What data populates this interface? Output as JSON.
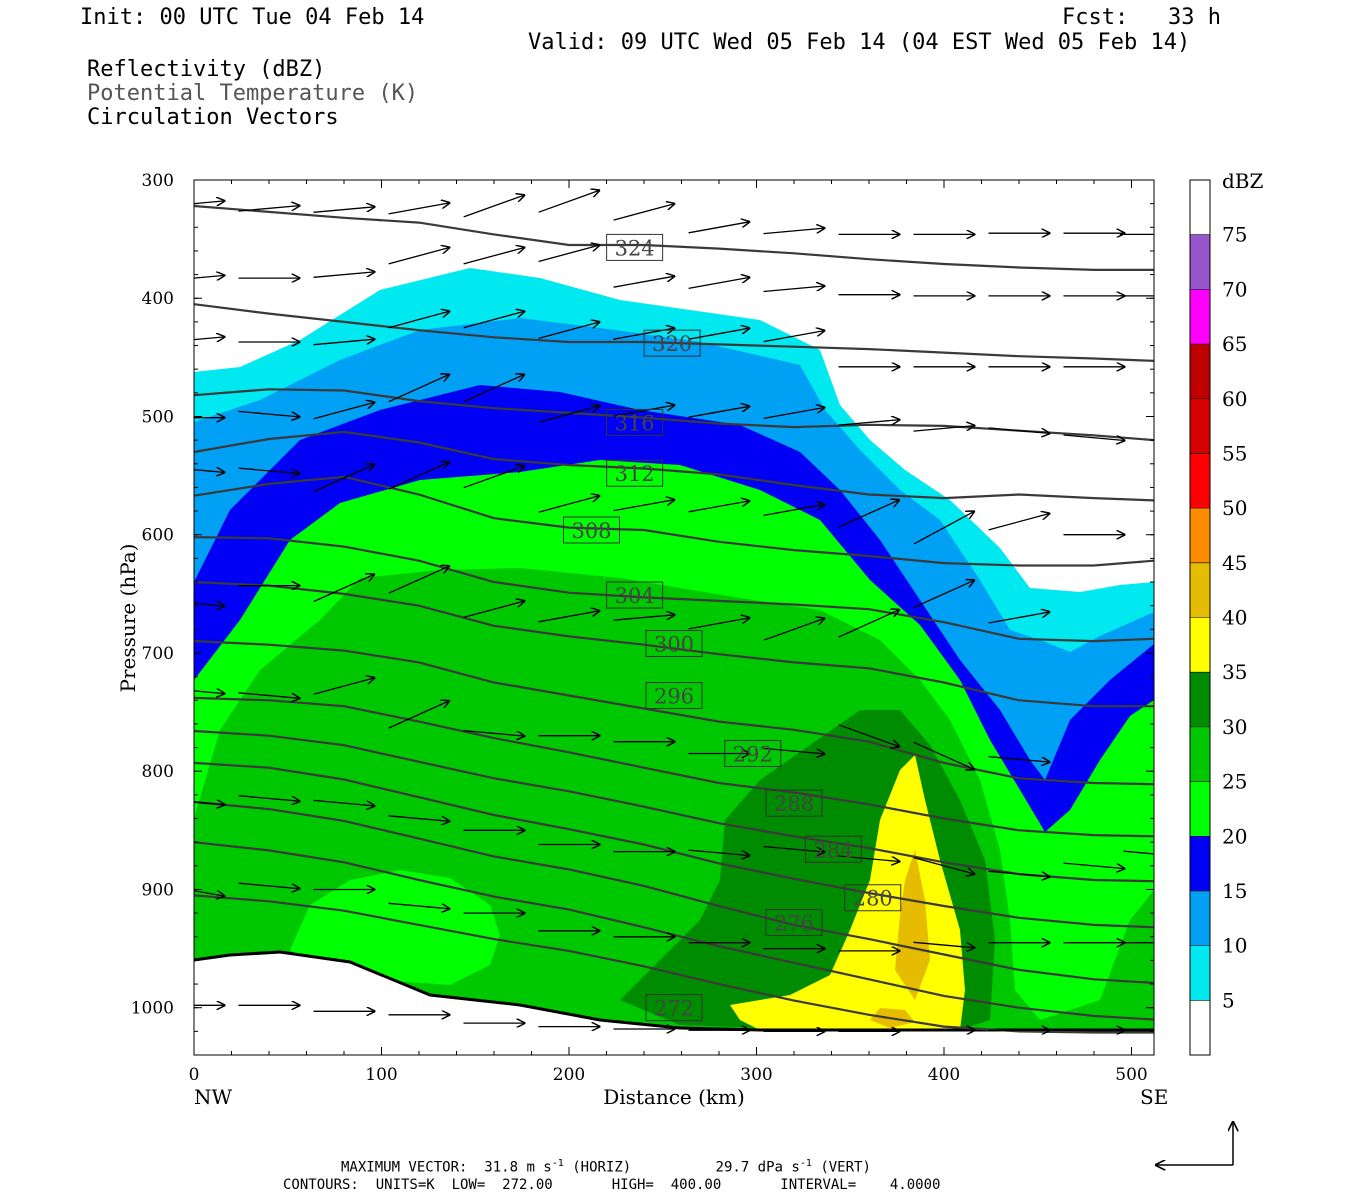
{
  "header": {
    "init": "Init: 00 UTC Tue 04 Feb 14",
    "fcst": "Fcst:   33 h",
    "valid": "Valid: 09 UTC Wed 05 Feb 14 (04 EST Wed 05 Feb 14)",
    "fields": [
      "Reflectivity (dBZ)",
      "Potential Temperature (K)",
      "Circulation Vectors"
    ]
  },
  "chart_data": {
    "type": "cross-section",
    "xlabel": "Distance (km)",
    "ylabel": "Pressure (hPa)",
    "xlim": [
      0,
      512
    ],
    "ylim": [
      1040,
      300
    ],
    "x_ticks": [
      "0",
      "100",
      "200",
      "300",
      "400",
      "500"
    ],
    "x_tick_values": [
      0,
      100,
      200,
      300,
      400,
      500
    ],
    "y_ticks": [
      "300",
      "400",
      "500",
      "600",
      "700",
      "800",
      "900",
      "1000"
    ],
    "y_tick_values": [
      300,
      400,
      500,
      600,
      700,
      800,
      900,
      1000
    ],
    "endpoint_left": "NW",
    "endpoint_right": "SE",
    "colorbar": {
      "unit": "dBZ",
      "levels": [
        "5",
        "10",
        "15",
        "20",
        "25",
        "30",
        "35",
        "40",
        "45",
        "50",
        "55",
        "60",
        "65",
        "70",
        "75"
      ],
      "colors": [
        "#ffffff",
        "#00e8f0",
        "#00a0f5",
        "#0000f5",
        "#00ff00",
        "#00c800",
        "#008c00",
        "#ffff00",
        "#e6bc00",
        "#ff8c00",
        "#ff0000",
        "#d60000",
        "#c00000",
        "#ff00ff",
        "#9955cc",
        "#ffffff"
      ]
    },
    "theta_contours": [
      {
        "label": "324",
        "y": [
          322,
          327,
          332,
          336,
          346,
          355,
          355,
          358,
          362,
          367,
          371,
          374,
          376,
          376
        ],
        "label_x": 235,
        "label_y": 357
      },
      {
        "label": "320",
        "y": [
          405,
          413,
          420,
          427,
          433,
          437,
          437,
          439,
          441,
          443,
          446,
          449,
          451,
          453
        ],
        "label_x": 255,
        "label_y": 438
      },
      {
        "label": "316",
        "y": [
          482,
          477,
          478,
          487,
          493,
          497,
          501,
          506,
          509,
          507,
          508,
          512,
          516,
          520
        ],
        "label_x": 235,
        "label_y": 505
      },
      {
        "label": "312",
        "y": [
          530,
          519,
          513,
          522,
          536,
          541,
          544,
          549,
          558,
          566,
          569,
          566,
          569,
          571
        ],
        "label_x": 235,
        "label_y": 548
      },
      {
        "label": "308",
        "y": [
          567,
          557,
          551,
          566,
          586,
          594,
          596,
          606,
          613,
          618,
          624,
          626,
          626,
          622
        ],
        "label_x": 212,
        "label_y": 596
      },
      {
        "label": "304",
        "y": [
          602,
          603,
          610,
          622,
          640,
          649,
          653,
          656,
          659,
          663,
          674,
          688,
          690,
          688
        ],
        "label_x": 235,
        "label_y": 651
      },
      {
        "label": "300",
        "y": [
          640,
          643,
          650,
          660,
          677,
          686,
          693,
          701,
          708,
          713,
          725,
          740,
          745,
          745
        ],
        "label_x": 256,
        "label_y": 692
      },
      {
        "label": "296",
        "y": [
          690,
          693,
          698,
          708,
          725,
          736,
          747,
          758,
          765,
          775,
          793,
          806,
          810,
          811
        ],
        "label_x": 256,
        "label_y": 736
      },
      {
        "label": "292",
        "y": [
          738,
          740,
          745,
          758,
          772,
          784,
          797,
          810,
          818,
          828,
          840,
          850,
          854,
          855
        ],
        "label_x": 298,
        "label_y": 785
      },
      {
        "label": "288",
        "y": [
          766,
          770,
          778,
          792,
          806,
          817,
          830,
          844,
          855,
          865,
          877,
          887,
          892,
          893
        ],
        "label_x": 320,
        "label_y": 827
      },
      {
        "label": "284",
        "y": [
          793,
          797,
          807,
          822,
          837,
          849,
          862,
          878,
          891,
          903,
          914,
          924,
          930,
          932
        ],
        "label_x": 341,
        "label_y": 866
      },
      {
        "label": "280",
        "y": [
          826,
          832,
          842,
          857,
          872,
          883,
          897,
          914,
          930,
          942,
          955,
          968,
          976,
          979
        ],
        "label_x": 362,
        "label_y": 907
      },
      {
        "label": "276",
        "y": [
          860,
          867,
          877,
          892,
          906,
          917,
          932,
          948,
          962,
          976,
          990,
          1000,
          1007,
          1010
        ],
        "label_x": 320,
        "label_y": 928
      },
      {
        "label": "272",
        "y": [
          905,
          910,
          918,
          930,
          942,
          952,
          965,
          980,
          994,
          1006,
          1016,
          1020,
          1021,
          1021
        ],
        "label_x": 256,
        "label_y": 1000
      }
    ],
    "theta_x": [
      0,
      40,
      80,
      120,
      160,
      200,
      240,
      280,
      320,
      360,
      400,
      440,
      480,
      512
    ],
    "vectors_note": "circulation vectors",
    "vectors": [
      [
        0,
        320,
        10,
        1
      ],
      [
        40,
        324,
        10,
        1
      ],
      [
        80,
        325,
        10,
        1
      ],
      [
        120,
        324,
        10,
        2
      ],
      [
        160,
        322,
        10,
        4
      ],
      [
        200,
        318,
        10,
        4
      ],
      [
        240,
        327,
        10,
        3
      ],
      [
        280,
        340,
        10,
        2
      ],
      [
        320,
        343,
        10,
        1
      ],
      [
        360,
        346,
        10,
        0
      ],
      [
        400,
        346,
        10,
        0
      ],
      [
        440,
        345,
        10,
        0
      ],
      [
        480,
        345,
        10,
        0
      ],
      [
        510,
        346,
        10,
        0
      ],
      [
        0,
        383,
        10,
        1
      ],
      [
        40,
        383,
        10,
        0
      ],
      [
        80,
        380,
        10,
        1
      ],
      [
        120,
        364,
        10,
        3
      ],
      [
        160,
        364,
        10,
        3
      ],
      [
        200,
        362,
        10,
        3
      ],
      [
        240,
        386,
        10,
        2
      ],
      [
        280,
        387,
        10,
        2
      ],
      [
        320,
        392,
        10,
        1
      ],
      [
        360,
        397,
        10,
        0
      ],
      [
        400,
        398,
        10,
        0
      ],
      [
        440,
        398,
        10,
        0
      ],
      [
        480,
        398,
        10,
        0
      ],
      [
        510,
        398,
        10,
        0
      ],
      [
        0,
        435,
        10,
        1
      ],
      [
        40,
        437,
        10,
        0
      ],
      [
        80,
        437,
        10,
        1
      ],
      [
        120,
        418,
        10,
        3
      ],
      [
        160,
        418,
        10,
        3
      ],
      [
        200,
        427,
        10,
        3
      ],
      [
        240,
        430,
        10,
        2
      ],
      [
        280,
        430,
        10,
        2
      ],
      [
        320,
        432,
        10,
        2
      ],
      [
        360,
        458,
        10,
        0
      ],
      [
        400,
        458,
        10,
        0
      ],
      [
        440,
        458,
        10,
        0
      ],
      [
        480,
        458,
        10,
        0
      ],
      [
        0,
        501,
        10,
        0
      ],
      [
        40,
        498,
        10,
        -1
      ],
      [
        80,
        495,
        10,
        3
      ],
      [
        120,
        476,
        10,
        5
      ],
      [
        160,
        476,
        10,
        5
      ],
      [
        200,
        498,
        10,
        3
      ],
      [
        240,
        495,
        10,
        2
      ],
      [
        280,
        496,
        10,
        2
      ],
      [
        320,
        497,
        10,
        2
      ],
      [
        360,
        505,
        10,
        1
      ],
      [
        400,
        510,
        10,
        1
      ],
      [
        440,
        512,
        10,
        -1
      ],
      [
        480,
        518,
        10,
        -1
      ],
      [
        0,
        545,
        10,
        -1
      ],
      [
        40,
        546,
        10,
        -1
      ],
      [
        80,
        552,
        10,
        5
      ],
      [
        120,
        550,
        10,
        5
      ],
      [
        160,
        551,
        10,
        4
      ],
      [
        200,
        574,
        10,
        3
      ],
      [
        240,
        575,
        10,
        2
      ],
      [
        280,
        576,
        10,
        2
      ],
      [
        320,
        579,
        10,
        2
      ],
      [
        360,
        582,
        10,
        5
      ],
      [
        400,
        594,
        10,
        6
      ],
      [
        440,
        589,
        10,
        3
      ],
      [
        480,
        600,
        10,
        0
      ],
      [
        0,
        658,
        10,
        -1
      ],
      [
        40,
        643,
        10,
        0
      ],
      [
        80,
        645,
        10,
        5
      ],
      [
        120,
        638,
        10,
        5
      ],
      [
        160,
        663,
        10,
        3
      ],
      [
        200,
        669,
        10,
        2
      ],
      [
        240,
        670,
        10,
        1
      ],
      [
        280,
        675,
        10,
        2
      ],
      [
        320,
        680,
        10,
        4
      ],
      [
        360,
        675,
        10,
        5
      ],
      [
        400,
        650,
        10,
        5
      ],
      [
        440,
        670,
        10,
        2
      ],
      [
        0,
        732,
        10,
        -1
      ],
      [
        40,
        736,
        10,
        -1
      ],
      [
        80,
        728,
        10,
        3
      ],
      [
        120,
        752,
        10,
        5
      ],
      [
        160,
        768,
        10,
        -1
      ],
      [
        200,
        770,
        10,
        0
      ],
      [
        240,
        775,
        10,
        0
      ],
      [
        280,
        785,
        10,
        0
      ],
      [
        320,
        783,
        10,
        -1
      ],
      [
        360,
        770,
        10,
        -4
      ],
      [
        400,
        787,
        10,
        -5
      ],
      [
        440,
        790,
        10,
        -1
      ],
      [
        0,
        826,
        10,
        -1
      ],
      [
        40,
        823,
        10,
        -1
      ],
      [
        80,
        827,
        10,
        -1
      ],
      [
        120,
        840,
        10,
        -1
      ],
      [
        160,
        850,
        10,
        0
      ],
      [
        200,
        862,
        10,
        0
      ],
      [
        240,
        868,
        10,
        0
      ],
      [
        280,
        869,
        10,
        -1
      ],
      [
        320,
        866,
        10,
        -1
      ],
      [
        360,
        874,
        10,
        -1
      ],
      [
        400,
        880,
        10,
        -3
      ],
      [
        440,
        887,
        10,
        -1
      ],
      [
        480,
        880,
        10,
        -1
      ],
      [
        512,
        870,
        10,
        -1
      ],
      [
        0,
        901,
        10,
        -2
      ],
      [
        40,
        897,
        10,
        -1
      ],
      [
        80,
        900,
        10,
        0
      ],
      [
        120,
        914,
        10,
        -1
      ],
      [
        160,
        920,
        10,
        0
      ],
      [
        200,
        935,
        10,
        0
      ],
      [
        240,
        940,
        10,
        0
      ],
      [
        280,
        945,
        10,
        0
      ],
      [
        320,
        950,
        10,
        0
      ],
      [
        360,
        952,
        10,
        0
      ],
      [
        400,
        947,
        10,
        -1
      ],
      [
        440,
        945,
        10,
        0
      ],
      [
        480,
        945,
        10,
        0
      ],
      [
        512,
        945,
        10,
        0
      ],
      [
        0,
        998,
        10,
        0
      ],
      [
        40,
        998,
        10,
        0
      ],
      [
        80,
        1003,
        10,
        0
      ],
      [
        120,
        1006,
        10,
        0
      ],
      [
        160,
        1013,
        10,
        0
      ],
      [
        200,
        1016,
        10,
        0
      ],
      [
        240,
        1018,
        10,
        0
      ],
      [
        280,
        1019,
        10,
        0
      ],
      [
        320,
        1020,
        10,
        0
      ],
      [
        360,
        1020,
        10,
        0
      ],
      [
        400,
        1019,
        10,
        0
      ],
      [
        440,
        1019,
        10,
        0
      ],
      [
        480,
        1019,
        10,
        0
      ]
    ]
  },
  "footer": {
    "max_vector_label": "MAXIMUM VECTOR:",
    "max_vector_horiz": "31.8 m s",
    "max_vector_horiz_sup": "-1",
    "max_vector_horiz_tag": "(HORIZ)",
    "max_vector_vert": "29.7 dPa s",
    "max_vector_vert_sup": "-1",
    "max_vector_vert_tag": "(VERT)",
    "contours_line": "CONTOURS:  UNITS=K  LOW=  272.00       HIGH=  400.00       INTERVAL=    4.0000"
  }
}
